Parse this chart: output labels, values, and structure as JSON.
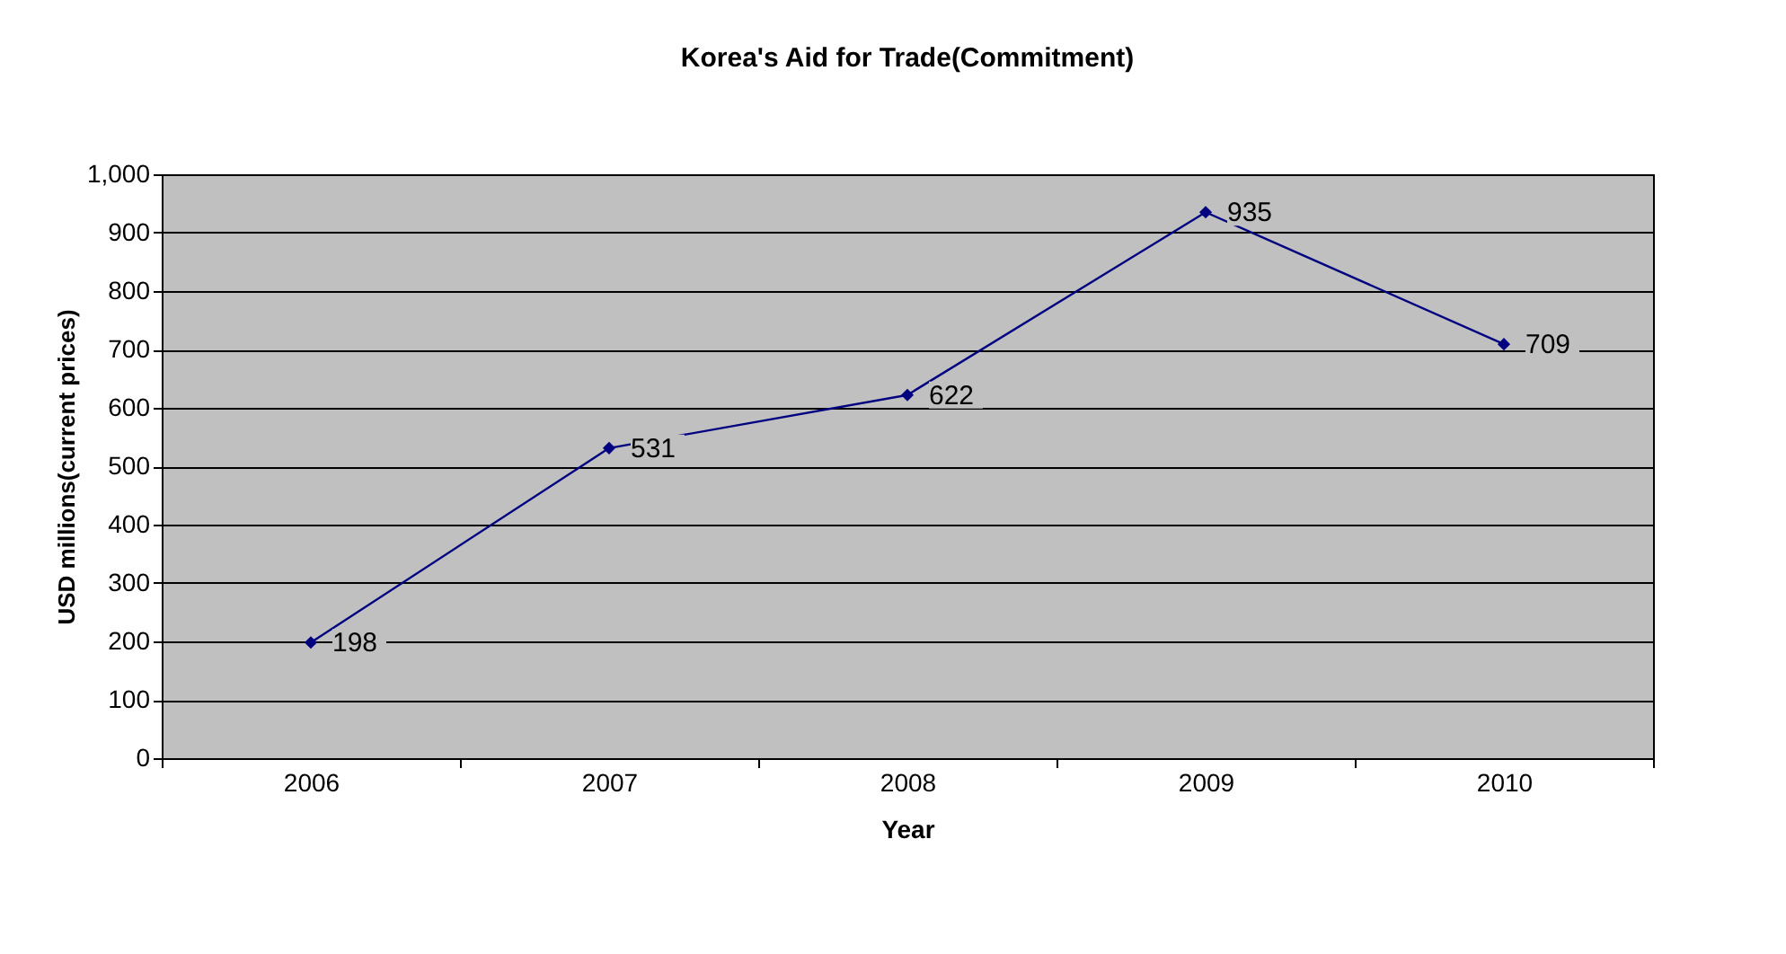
{
  "chart_data": {
    "type": "line",
    "title": "Korea's Aid for Trade(Commitment)",
    "xlabel": "Year",
    "ylabel": "USD millions(current prices)",
    "categories": [
      "2006",
      "2007",
      "2008",
      "2009",
      "2010"
    ],
    "series": [
      {
        "color": "#000080",
        "values": [
          198,
          531,
          622,
          935,
          709
        ]
      }
    ],
    "ylim": [
      0,
      1000
    ],
    "yticks": [
      0,
      100,
      200,
      300,
      400,
      500,
      600,
      700,
      800,
      900,
      {
        "value": 1000,
        "label": "1,000"
      }
    ],
    "grid": "y",
    "marker": "diamond",
    "line_style": "solid",
    "data_labels": true
  }
}
